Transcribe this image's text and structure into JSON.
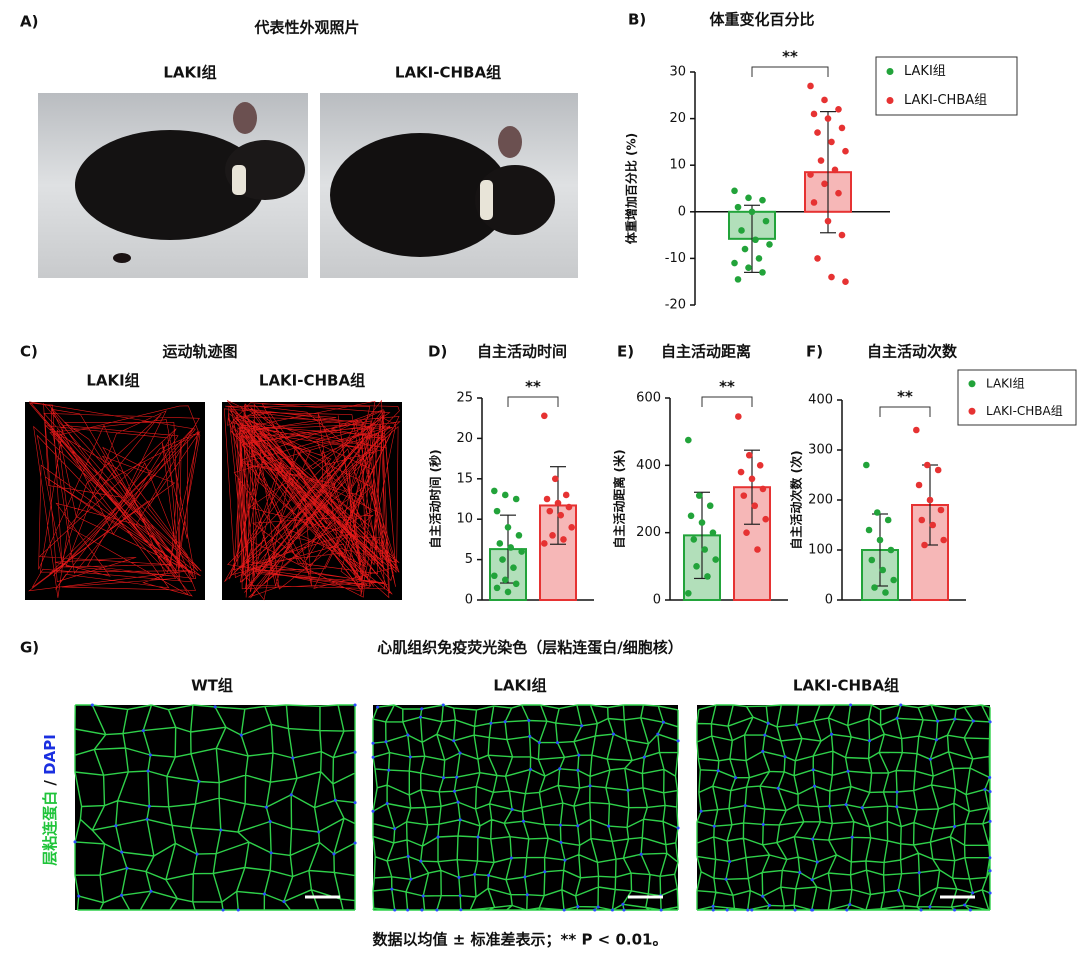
{
  "panels": {
    "a": {
      "label": "A)",
      "title": "代表性外观照片",
      "groups": [
        "LAKI组",
        "LAKI-CHBA组"
      ]
    },
    "c": {
      "label": "C)",
      "title": "运动轨迹图",
      "groups": [
        "LAKI组",
        "LAKI-CHBA组"
      ]
    },
    "g": {
      "label": "G)",
      "title": "心肌组织免疫荧光染色（层粘连蛋白/细胞核）",
      "groups": [
        "WT组",
        "LAKI组",
        "LAKI-CHBA组"
      ],
      "stain": [
        "层粘连蛋白",
        "/",
        "DAPI"
      ]
    }
  },
  "chart_data": [
    {
      "type": "bar",
      "panel": "B)",
      "title": "体重变化百分比",
      "ylabel": "体重增加百分比 (%)",
      "ylim": [
        -20,
        30
      ],
      "yticks": [
        -20,
        -10,
        0,
        10,
        20,
        30
      ],
      "significance": "**",
      "legend": "upper right",
      "series": [
        {
          "name": "LAKI组",
          "color": "#22a33a",
          "value": -5.8,
          "error": 7.2,
          "points": [
            4.5,
            3,
            2.5,
            1,
            0,
            -2,
            -4,
            -6,
            -7,
            -8,
            -10,
            -11,
            -12,
            -13,
            -14.5
          ]
        },
        {
          "name": "LAKI-CHBA组",
          "color": "#e63232",
          "value": 8.5,
          "error": 13,
          "points": [
            27,
            24,
            22,
            21,
            20,
            18,
            17,
            15,
            13,
            11,
            9,
            8,
            6,
            4,
            2,
            -2,
            -5,
            -10,
            -14,
            -15
          ]
        }
      ]
    },
    {
      "type": "bar",
      "panel": "D)",
      "title": "自主活动时间",
      "ylabel": "自主活动时间 (秒)",
      "ylim": [
        0,
        25
      ],
      "yticks": [
        0,
        5,
        10,
        15,
        20,
        25
      ],
      "significance": "**",
      "series": [
        {
          "name": "LAKI组",
          "color": "#22a33a",
          "value": 6.3,
          "error": 4.2,
          "points": [
            13.5,
            13,
            12.5,
            11,
            9,
            8,
            7,
            6.5,
            6,
            5,
            4,
            3,
            2.5,
            2,
            1.5,
            1
          ]
        },
        {
          "name": "LAKI-CHBA组",
          "color": "#e63232",
          "value": 11.7,
          "error": 4.8,
          "points": [
            22.8,
            15,
            13,
            12.5,
            12,
            11.5,
            11,
            10.5,
            9,
            8,
            7.5,
            7
          ]
        }
      ]
    },
    {
      "type": "bar",
      "panel": "E)",
      "title": "自主活动距离",
      "ylabel": "自主活动距离 (米)",
      "ylim": [
        0,
        600
      ],
      "yticks": [
        0,
        200,
        400,
        600
      ],
      "significance": "**",
      "series": [
        {
          "name": "LAKI组",
          "color": "#22a33a",
          "value": 192,
          "error": 128,
          "points": [
            475,
            310,
            280,
            250,
            230,
            200,
            180,
            150,
            120,
            100,
            70,
            20
          ]
        },
        {
          "name": "LAKI-CHBA组",
          "color": "#e63232",
          "value": 335,
          "error": 110,
          "points": [
            545,
            430,
            400,
            380,
            360,
            330,
            310,
            280,
            240,
            200,
            150
          ]
        }
      ]
    },
    {
      "type": "bar",
      "panel": "F)",
      "title": "自主活动次数",
      "ylabel": "自主活动次数 (次)",
      "ylim": [
        0,
        400
      ],
      "yticks": [
        0,
        100,
        200,
        300,
        400
      ],
      "significance": "**",
      "legend": "upper right",
      "series": [
        {
          "name": "LAKI组",
          "color": "#22a33a",
          "value": 100,
          "error": 72,
          "points": [
            270,
            175,
            160,
            140,
            120,
            100,
            80,
            60,
            40,
            25,
            15
          ]
        },
        {
          "name": "LAKI-CHBA组",
          "color": "#e63232",
          "value": 190,
          "error": 80,
          "points": [
            340,
            270,
            260,
            230,
            200,
            180,
            160,
            150,
            120,
            110
          ]
        }
      ]
    }
  ],
  "footnote": "数据以均值 ± 标准差表示；** P < 0.01。"
}
